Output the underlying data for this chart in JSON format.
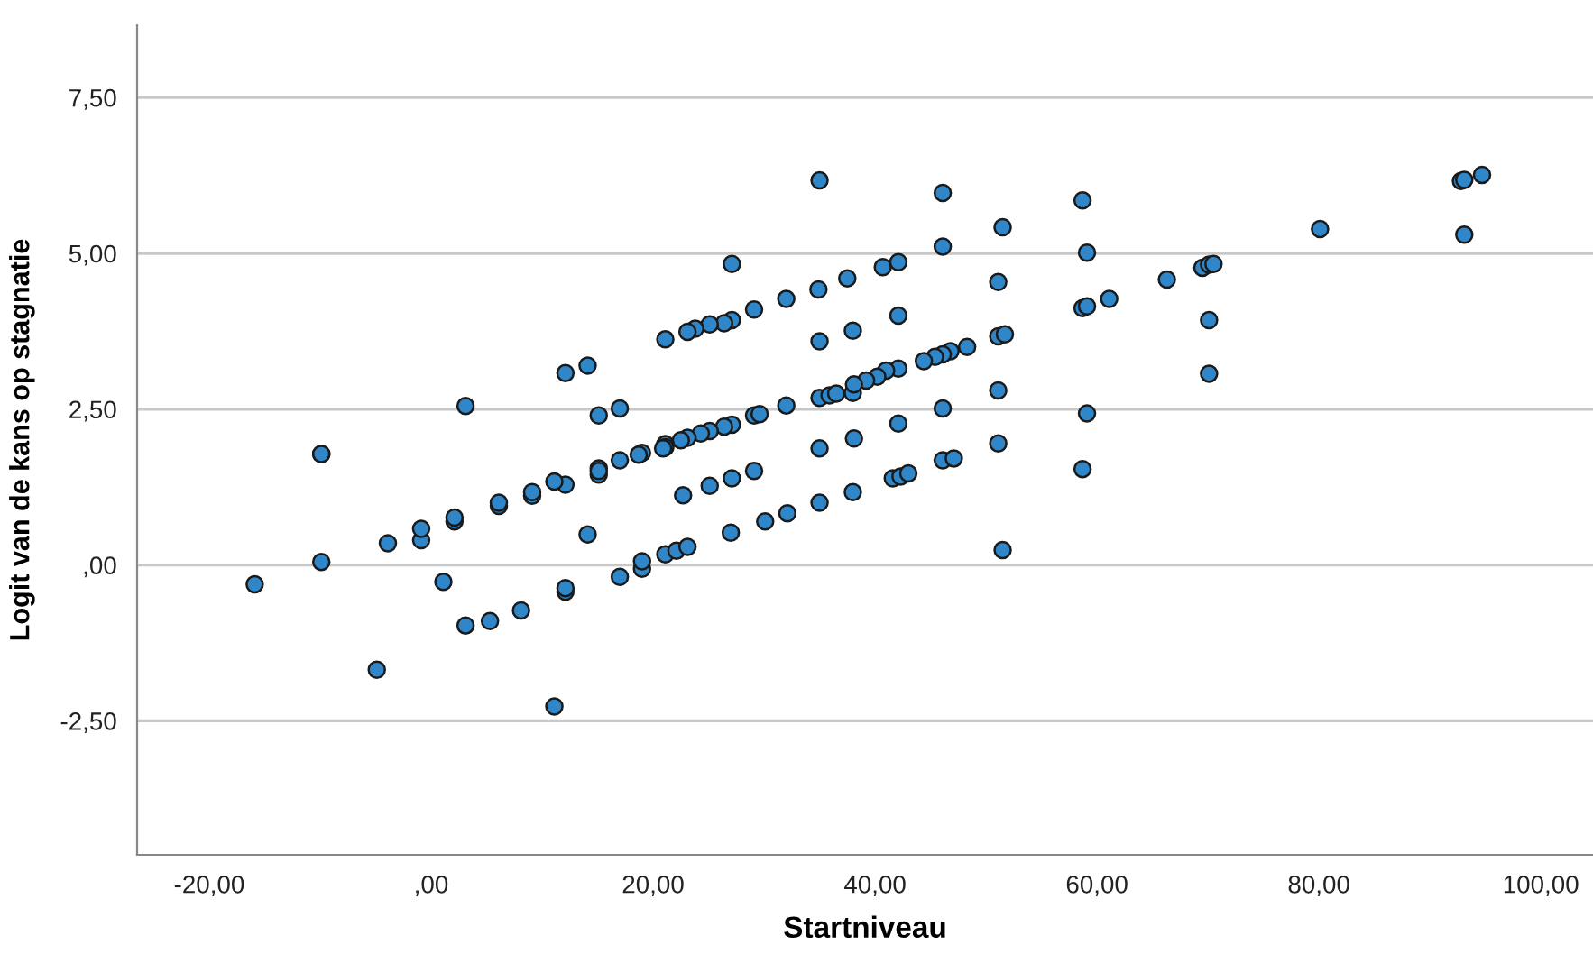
{
  "chart_data": {
    "type": "scatter",
    "xlabel": "Startniveau",
    "ylabel": "Logit van de kans op stagnatie",
    "xlim": [
      -26.5,
      104.7
    ],
    "ylim": [
      -4.65,
      8.66
    ],
    "xticks": [
      {
        "value": -20,
        "label": "-20,00"
      },
      {
        "value": 0,
        "label": ",00"
      },
      {
        "value": 20,
        "label": "20,00"
      },
      {
        "value": 40,
        "label": "40,00"
      },
      {
        "value": 60,
        "label": "60,00"
      },
      {
        "value": 80,
        "label": "80,00"
      },
      {
        "value": 100,
        "label": "100,00"
      }
    ],
    "yticks": [
      {
        "value": -2.5,
        "label": "-2,50"
      },
      {
        "value": 0,
        "label": ",00"
      },
      {
        "value": 2.5,
        "label": "2,50"
      },
      {
        "value": 5,
        "label": "5,00"
      },
      {
        "value": 7.5,
        "label": "7,50"
      }
    ],
    "grid": "y",
    "marker": "circle",
    "series": [
      {
        "color": "#2f86c8",
        "x": [
          35.0,
          27.1,
          37.5,
          32.0,
          34.9,
          29.1,
          27.1,
          26.4,
          25.1,
          23.8,
          23.1,
          21.1,
          35.0,
          38.0,
          14.1,
          12.1,
          3.1,
          15.1,
          17.0,
          35.0,
          35.9,
          36.5,
          38.0,
          32.0,
          29.1,
          29.6,
          27.1,
          26.4,
          25.1,
          24.3,
          23.1,
          22.5,
          21.1,
          19.0,
          17.0,
          15.1,
          -9.9,
          35.0,
          -15.9,
          -9.9,
          -9.9,
          -4.9,
          -3.9,
          -0.9,
          -0.9,
          1.1,
          2.1,
          2.1,
          3.1,
          5.3,
          6.1,
          6.1,
          8.1,
          9.1,
          9.1,
          11.1,
          12.1,
          11.1,
          12.1,
          12.1,
          14.1,
          15.1,
          15.1,
          17.0,
          19.0,
          18.7,
          19.0,
          21.1,
          20.9,
          21.1,
          22.1,
          23.1,
          22.7,
          25.1,
          27.1,
          29.1,
          27.0,
          30.1,
          32.1,
          35.0,
          38.0,
          46.1,
          58.7,
          51.5,
          46.1,
          59.1,
          80.1,
          92.8,
          93.1,
          94.7,
          93.1,
          40.7,
          42.1,
          42.1,
          51.1,
          66.3,
          69.5,
          70.1,
          70.5,
          61.1,
          58.7,
          59.1,
          70.1,
          70.1,
          51.1,
          51.7,
          48.3,
          46.8,
          46.1,
          45.4,
          44.4,
          42.1,
          41.0,
          40.2,
          39.2,
          38.1,
          51.1,
          46.1,
          42.1,
          38.1,
          59.1,
          51.1,
          46.1,
          47.1,
          58.7,
          41.6,
          42.3,
          43.0,
          51.5
        ],
        "values": [
          6.17,
          4.83,
          4.6,
          4.27,
          4.42,
          4.1,
          3.93,
          3.88,
          3.86,
          3.79,
          3.74,
          3.62,
          3.59,
          3.76,
          3.2,
          3.08,
          2.55,
          2.4,
          2.51,
          2.68,
          2.72,
          2.75,
          2.76,
          2.56,
          2.4,
          2.42,
          2.25,
          2.22,
          2.15,
          2.11,
          2.04,
          2.0,
          1.94,
          1.8,
          1.68,
          1.55,
          1.78,
          1.87,
          -0.31,
          1.78,
          0.05,
          -1.68,
          0.35,
          0.4,
          0.58,
          -0.27,
          0.7,
          0.76,
          -0.97,
          -0.9,
          0.95,
          1.0,
          -0.73,
          1.11,
          1.17,
          -2.27,
          1.29,
          1.34,
          -0.43,
          -0.37,
          0.49,
          1.45,
          1.51,
          -0.19,
          -0.06,
          1.77,
          0.06,
          1.89,
          1.87,
          0.17,
          0.23,
          0.29,
          1.12,
          1.27,
          1.39,
          1.51,
          0.52,
          0.7,
          0.83,
          1.0,
          1.17,
          5.97,
          5.85,
          5.42,
          5.11,
          5.01,
          5.39,
          6.16,
          6.18,
          6.26,
          5.3,
          4.78,
          4.86,
          4.0,
          4.54,
          4.58,
          4.77,
          4.82,
          4.83,
          4.27,
          4.12,
          4.15,
          3.93,
          3.07,
          3.67,
          3.7,
          3.5,
          3.43,
          3.38,
          3.34,
          3.27,
          3.15,
          3.12,
          3.02,
          2.96,
          2.9,
          2.8,
          2.51,
          2.27,
          2.03,
          2.43,
          1.95,
          1.68,
          1.71,
          1.54,
          1.39,
          1.42,
          1.47,
          0.24
        ]
      }
    ]
  }
}
